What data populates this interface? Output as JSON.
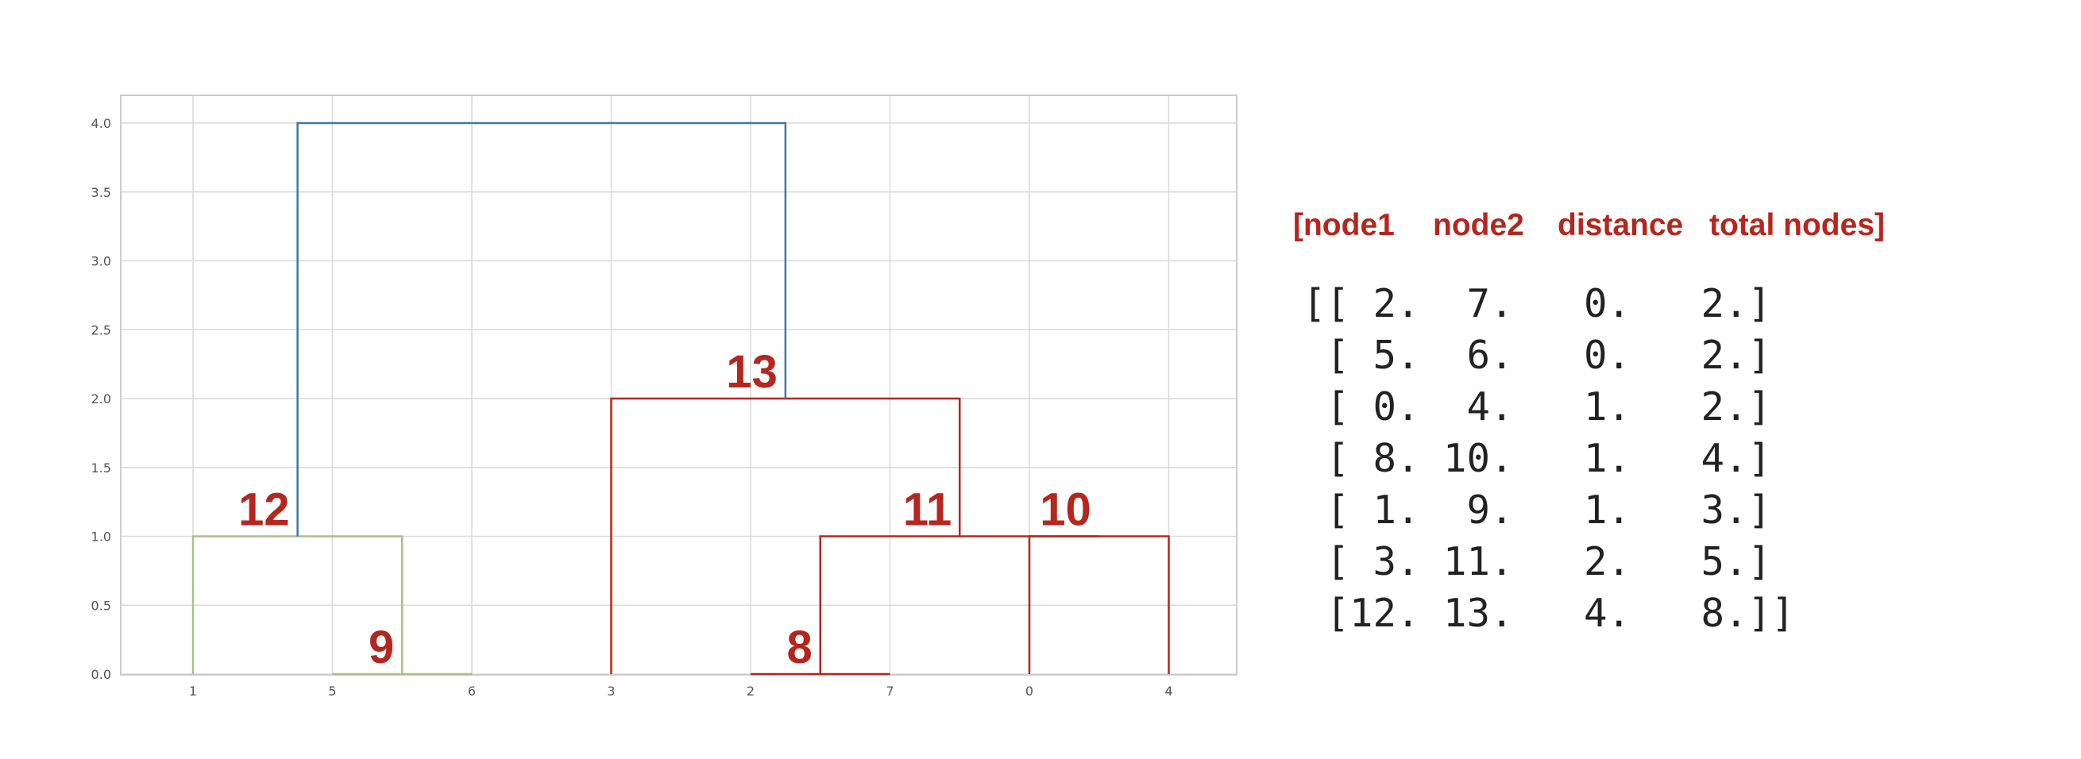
{
  "chart_data": {
    "type": "dendrogram",
    "leaf_order": [
      "1",
      "5",
      "6",
      "3",
      "2",
      "7",
      "0",
      "4"
    ],
    "y_ticks": [
      "0.0",
      "0.5",
      "1.0",
      "1.5",
      "2.0",
      "2.5",
      "3.0",
      "3.5",
      "4.0"
    ],
    "ylim": [
      0,
      4
    ],
    "grid": true,
    "links": [
      {
        "id": 8,
        "left": "2",
        "right": "7",
        "height": 0,
        "color": "#b5261e"
      },
      {
        "id": 9,
        "left": "5",
        "right": "6",
        "height": 0,
        "color": "#a8c08a"
      },
      {
        "id": 10,
        "left": "0",
        "right": "4",
        "height": 1,
        "color": "#b5261e"
      },
      {
        "id": 11,
        "left": "8",
        "right": "10",
        "height": 1,
        "color": "#b5261e"
      },
      {
        "id": 12,
        "left": "1",
        "right": "9",
        "height": 1,
        "color": "#a8c08a"
      },
      {
        "id": 13,
        "left": "3",
        "right": "11",
        "height": 2,
        "color": "#b5261e"
      },
      {
        "id": 14,
        "left": "12",
        "right": "13",
        "height": 4,
        "color": "#3f79a8"
      }
    ],
    "annotations": [
      "8",
      "9",
      "10",
      "11",
      "12",
      "13"
    ]
  },
  "header": {
    "node1": "[node1",
    "node2": "node2",
    "distance": "distance",
    "total": "total nodes]"
  },
  "matrix_rows": [
    "[[ 2.  7.   0.   2.]",
    " [ 5.  6.   0.   2.]",
    " [ 0.  4.   1.   2.]",
    " [ 8. 10.   1.   4.]",
    " [ 1.  9.   1.   3.]",
    " [ 3. 11.   2.   5.]",
    " [12. 13.   4.   8.]]"
  ],
  "colors": {
    "annotation": "#b5261e",
    "grid": "#d9d9d9",
    "frame": "#cccccc"
  }
}
